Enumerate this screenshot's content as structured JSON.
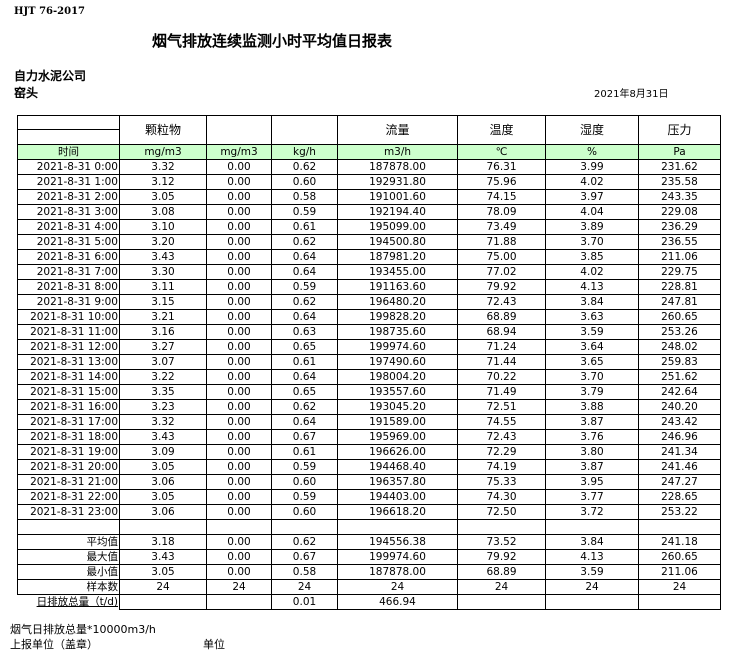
{
  "standard": "HJT  76-2017",
  "title": "烟气排放连续监测小时平均值日报表",
  "company": "自力水泥公司",
  "unit": "窑头",
  "date": "2021年8月31日",
  "headers": [
    "",
    "颗粒物",
    "",
    "",
    "流量",
    "温度",
    "湿度",
    "压力"
  ],
  "units": [
    "时间",
    "mg/m3",
    "mg/m3",
    "kg/h",
    "m3/h",
    "℃",
    "%",
    "Pa"
  ],
  "rows": [
    [
      "2021-8-31 0:00",
      "3.32",
      "0.00",
      "0.62",
      "187878.00",
      "76.31",
      "3.99",
      "231.62"
    ],
    [
      "2021-8-31 1:00",
      "3.12",
      "0.00",
      "0.60",
      "192931.80",
      "75.96",
      "4.02",
      "235.58"
    ],
    [
      "2021-8-31 2:00",
      "3.05",
      "0.00",
      "0.58",
      "191001.60",
      "74.15",
      "3.97",
      "243.35"
    ],
    [
      "2021-8-31 3:00",
      "3.08",
      "0.00",
      "0.59",
      "192194.40",
      "78.09",
      "4.04",
      "229.08"
    ],
    [
      "2021-8-31 4:00",
      "3.10",
      "0.00",
      "0.61",
      "195099.00",
      "73.49",
      "3.89",
      "236.29"
    ],
    [
      "2021-8-31 5:00",
      "3.20",
      "0.00",
      "0.62",
      "194500.80",
      "71.88",
      "3.70",
      "236.55"
    ],
    [
      "2021-8-31 6:00",
      "3.43",
      "0.00",
      "0.64",
      "187981.20",
      "75.00",
      "3.85",
      "211.06"
    ],
    [
      "2021-8-31 7:00",
      "3.30",
      "0.00",
      "0.64",
      "193455.00",
      "77.02",
      "4.02",
      "229.75"
    ],
    [
      "2021-8-31 8:00",
      "3.11",
      "0.00",
      "0.59",
      "191163.60",
      "79.92",
      "4.13",
      "228.81"
    ],
    [
      "2021-8-31 9:00",
      "3.15",
      "0.00",
      "0.62",
      "196480.20",
      "72.43",
      "3.84",
      "247.81"
    ],
    [
      "2021-8-31 10:00",
      "3.21",
      "0.00",
      "0.64",
      "199828.20",
      "68.89",
      "3.63",
      "260.65"
    ],
    [
      "2021-8-31 11:00",
      "3.16",
      "0.00",
      "0.63",
      "198735.60",
      "68.94",
      "3.59",
      "253.26"
    ],
    [
      "2021-8-31 12:00",
      "3.27",
      "0.00",
      "0.65",
      "199974.60",
      "71.24",
      "3.64",
      "248.02"
    ],
    [
      "2021-8-31 13:00",
      "3.07",
      "0.00",
      "0.61",
      "197490.60",
      "71.44",
      "3.65",
      "259.83"
    ],
    [
      "2021-8-31 14:00",
      "3.22",
      "0.00",
      "0.64",
      "198004.20",
      "70.22",
      "3.70",
      "251.62"
    ],
    [
      "2021-8-31 15:00",
      "3.35",
      "0.00",
      "0.65",
      "193557.60",
      "71.49",
      "3.79",
      "242.64"
    ],
    [
      "2021-8-31 16:00",
      "3.23",
      "0.00",
      "0.62",
      "193045.20",
      "72.51",
      "3.88",
      "240.20"
    ],
    [
      "2021-8-31 17:00",
      "3.32",
      "0.00",
      "0.64",
      "191589.00",
      "74.55",
      "3.87",
      "243.42"
    ],
    [
      "2021-8-31 18:00",
      "3.43",
      "0.00",
      "0.67",
      "195969.00",
      "72.43",
      "3.76",
      "246.96"
    ],
    [
      "2021-8-31 19:00",
      "3.09",
      "0.00",
      "0.61",
      "196626.00",
      "72.29",
      "3.80",
      "241.34"
    ],
    [
      "2021-8-31 20:00",
      "3.05",
      "0.00",
      "0.59",
      "194468.40",
      "74.19",
      "3.87",
      "241.46"
    ],
    [
      "2021-8-31 21:00",
      "3.06",
      "0.00",
      "0.60",
      "196357.80",
      "75.33",
      "3.95",
      "247.27"
    ],
    [
      "2021-8-31 22:00",
      "3.05",
      "0.00",
      "0.59",
      "194403.00",
      "74.30",
      "3.77",
      "228.65"
    ],
    [
      "2021-8-31 23:00",
      "3.06",
      "0.00",
      "0.60",
      "196618.20",
      "72.50",
      "3.72",
      "253.22"
    ]
  ],
  "summary": [
    [
      "平均值",
      "3.18",
      "0.00",
      "0.62",
      "194556.38",
      "73.52",
      "3.84",
      "241.18"
    ],
    [
      "最大值",
      "3.43",
      "0.00",
      "0.67",
      "199974.60",
      "79.92",
      "4.13",
      "260.65"
    ],
    [
      "最小值",
      "3.05",
      "0.00",
      "0.58",
      "187878.00",
      "68.89",
      "3.59",
      "211.06"
    ],
    [
      "样本数",
      "24",
      "24",
      "24",
      "24",
      "24",
      "24",
      "24"
    ]
  ],
  "total": [
    "日排放总量（t/d)",
    "",
    "",
    "0.01",
    "466.94",
    "",
    "",
    ""
  ],
  "footer": {
    "note": "烟气日排放总量*10000m3/h",
    "reporter": "上报单位（盖章）",
    "unit_label": "单位"
  },
  "colors": {
    "unit_row_bg": "#ccffcc"
  }
}
